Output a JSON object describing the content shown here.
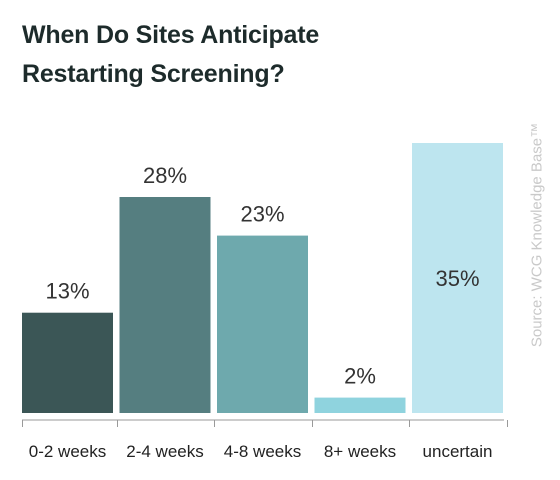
{
  "title_lines": [
    "When Do Sites Anticipate",
    "Restarting Screening?"
  ],
  "source": "Source: WCG Knowledge Base™",
  "colors": {
    "title": "#1d2b2b",
    "text": "#333333",
    "axis": "#9a9a9a",
    "source": "#c9c9c9"
  },
  "chart_data": {
    "type": "bar",
    "title": "When Do Sites Anticipate Restarting Screening?",
    "categories": [
      "0-2 weeks",
      "2-4 weeks",
      "4-8 weeks",
      "8+ weeks",
      "uncertain"
    ],
    "values": [
      13,
      28,
      23,
      2,
      35
    ],
    "data_labels": [
      "13%",
      "28%",
      "23%",
      "2%",
      "35%"
    ],
    "bar_colors": [
      "#3b5656",
      "#557e80",
      "#6ea9ad",
      "#8fd3de",
      "#bde5ef"
    ],
    "xlabel": "",
    "ylabel": "",
    "ylim": [
      0,
      35
    ],
    "grid": false,
    "legend": "none"
  }
}
